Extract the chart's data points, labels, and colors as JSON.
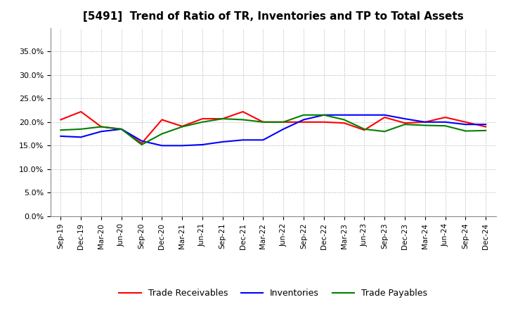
{
  "title": "[5491]  Trend of Ratio of TR, Inventories and TP to Total Assets",
  "x_labels": [
    "Sep-19",
    "Dec-19",
    "Mar-20",
    "Jun-20",
    "Sep-20",
    "Dec-20",
    "Mar-21",
    "Jun-21",
    "Sep-21",
    "Dec-21",
    "Mar-22",
    "Jun-22",
    "Sep-22",
    "Dec-22",
    "Mar-23",
    "Jun-23",
    "Sep-23",
    "Dec-23",
    "Mar-24",
    "Jun-24",
    "Sep-24",
    "Dec-24"
  ],
  "trade_receivables": [
    0.205,
    0.222,
    0.19,
    0.185,
    0.155,
    0.205,
    0.191,
    0.207,
    0.207,
    0.222,
    0.2,
    0.2,
    0.2,
    0.2,
    0.198,
    0.183,
    0.21,
    0.198,
    0.2,
    0.21,
    0.2,
    0.19
  ],
  "inventories": [
    0.17,
    0.168,
    0.18,
    0.185,
    0.16,
    0.15,
    0.15,
    0.152,
    0.158,
    0.162,
    0.162,
    0.185,
    0.205,
    0.215,
    0.215,
    0.215,
    0.215,
    0.207,
    0.2,
    0.2,
    0.195,
    0.195
  ],
  "trade_payables": [
    0.183,
    0.185,
    0.19,
    0.185,
    0.152,
    0.175,
    0.19,
    0.2,
    0.207,
    0.205,
    0.2,
    0.2,
    0.215,
    0.215,
    0.205,
    0.185,
    0.18,
    0.195,
    0.193,
    0.192,
    0.181,
    0.182
  ],
  "ylim": [
    0.0,
    0.4
  ],
  "yticks": [
    0.0,
    0.05,
    0.1,
    0.15,
    0.2,
    0.25,
    0.3,
    0.35
  ],
  "line_colors": {
    "trade_receivables": "#FF0000",
    "inventories": "#0000FF",
    "trade_payables": "#008000"
  },
  "background_color": "#FFFFFF",
  "plot_bg_color": "#FFFFFF",
  "grid_color": "#AAAAAA",
  "legend_labels": [
    "Trade Receivables",
    "Inventories",
    "Trade Payables"
  ]
}
